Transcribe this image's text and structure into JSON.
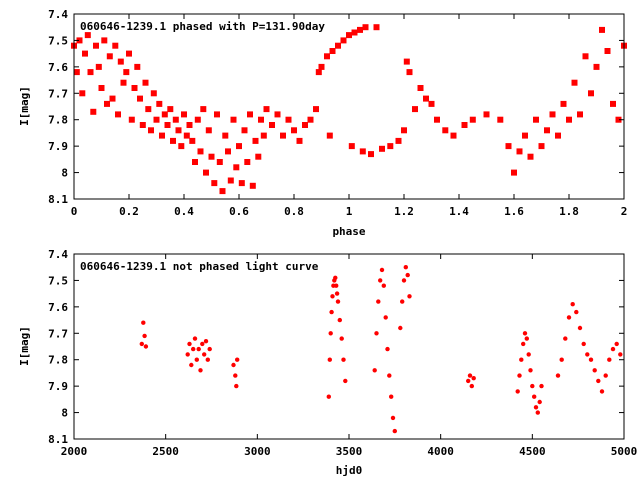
{
  "colors": {
    "points": "#ff0000",
    "axes": "#000000",
    "background": "#ffffff"
  },
  "chart_data": [
    {
      "type": "scatter",
      "title": "060646-1239.1 phased with P=131.90day",
      "xlabel": "phase",
      "ylabel": "I[mag]",
      "xlim": [
        0,
        2
      ],
      "ylim": [
        8.1,
        7.4
      ],
      "y_inverted": true,
      "grid": false,
      "legend": "none",
      "marker": "filled-square",
      "x_ticks": [
        "0",
        "0.2",
        "0.4",
        "0.6",
        "0.8",
        "1",
        "1.2",
        "1.4",
        "1.6",
        "1.8",
        "2"
      ],
      "y_ticks": [
        "7.4",
        "7.5",
        "7.6",
        "7.7",
        "7.8",
        "7.9",
        "8",
        "8.1"
      ],
      "points": [
        [
          0.0,
          7.52
        ],
        [
          0.01,
          7.62
        ],
        [
          0.02,
          7.5
        ],
        [
          0.03,
          7.7
        ],
        [
          0.04,
          7.55
        ],
        [
          0.05,
          7.48
        ],
        [
          0.06,
          7.62
        ],
        [
          0.07,
          7.77
        ],
        [
          0.08,
          7.52
        ],
        [
          0.09,
          7.6
        ],
        [
          0.1,
          7.68
        ],
        [
          0.11,
          7.5
        ],
        [
          0.12,
          7.74
        ],
        [
          0.13,
          7.56
        ],
        [
          0.14,
          7.72
        ],
        [
          0.15,
          7.52
        ],
        [
          0.16,
          7.78
        ],
        [
          0.17,
          7.58
        ],
        [
          0.18,
          7.66
        ],
        [
          0.19,
          7.62
        ],
        [
          0.2,
          7.55
        ],
        [
          0.21,
          7.8
        ],
        [
          0.22,
          7.68
        ],
        [
          0.23,
          7.6
        ],
        [
          0.24,
          7.72
        ],
        [
          0.25,
          7.82
        ],
        [
          0.26,
          7.66
        ],
        [
          0.27,
          7.76
        ],
        [
          0.28,
          7.84
        ],
        [
          0.29,
          7.7
        ],
        [
          0.3,
          7.8
        ],
        [
          0.31,
          7.74
        ],
        [
          0.32,
          7.86
        ],
        [
          0.33,
          7.78
        ],
        [
          0.34,
          7.82
        ],
        [
          0.35,
          7.76
        ],
        [
          0.36,
          7.88
        ],
        [
          0.37,
          7.8
        ],
        [
          0.38,
          7.84
        ],
        [
          0.39,
          7.9
        ],
        [
          0.4,
          7.78
        ],
        [
          0.41,
          7.86
        ],
        [
          0.42,
          7.82
        ],
        [
          0.43,
          7.88
        ],
        [
          0.44,
          7.96
        ],
        [
          0.45,
          7.8
        ],
        [
          0.46,
          7.92
        ],
        [
          0.47,
          7.76
        ],
        [
          0.48,
          8.0
        ],
        [
          0.49,
          7.84
        ],
        [
          0.5,
          7.94
        ],
        [
          0.51,
          8.04
        ],
        [
          0.52,
          7.78
        ],
        [
          0.53,
          7.96
        ],
        [
          0.54,
          8.07
        ],
        [
          0.55,
          7.86
        ],
        [
          0.56,
          7.92
        ],
        [
          0.57,
          8.03
        ],
        [
          0.58,
          7.8
        ],
        [
          0.59,
          7.98
        ],
        [
          0.6,
          7.9
        ],
        [
          0.61,
          8.04
        ],
        [
          0.62,
          7.84
        ],
        [
          0.63,
          7.96
        ],
        [
          0.64,
          7.78
        ],
        [
          0.65,
          8.05
        ],
        [
          0.66,
          7.88
        ],
        [
          0.67,
          7.94
        ],
        [
          0.68,
          7.8
        ],
        [
          0.69,
          7.86
        ],
        [
          0.7,
          7.76
        ],
        [
          0.72,
          7.82
        ],
        [
          0.74,
          7.78
        ],
        [
          0.76,
          7.86
        ],
        [
          0.78,
          7.8
        ],
        [
          0.8,
          7.84
        ],
        [
          0.82,
          7.88
        ],
        [
          0.84,
          7.82
        ],
        [
          0.86,
          7.8
        ],
        [
          0.88,
          7.76
        ],
        [
          0.89,
          7.62
        ],
        [
          0.9,
          7.6
        ],
        [
          0.92,
          7.56
        ],
        [
          0.93,
          7.86
        ],
        [
          0.94,
          7.54
        ],
        [
          0.96,
          7.52
        ],
        [
          0.98,
          7.5
        ],
        [
          1.0,
          7.48
        ],
        [
          1.01,
          7.9
        ],
        [
          1.02,
          7.47
        ],
        [
          1.04,
          7.46
        ],
        [
          1.05,
          7.92
        ],
        [
          1.06,
          7.45
        ],
        [
          1.08,
          7.93
        ],
        [
          1.1,
          7.45
        ],
        [
          1.12,
          7.91
        ],
        [
          1.15,
          7.9
        ],
        [
          1.18,
          7.88
        ],
        [
          1.2,
          7.84
        ],
        [
          1.21,
          7.58
        ],
        [
          1.22,
          7.62
        ],
        [
          1.24,
          7.76
        ],
        [
          1.26,
          7.68
        ],
        [
          1.28,
          7.72
        ],
        [
          1.3,
          7.74
        ],
        [
          1.32,
          7.8
        ],
        [
          1.35,
          7.84
        ],
        [
          1.38,
          7.86
        ],
        [
          1.42,
          7.82
        ],
        [
          1.45,
          7.8
        ],
        [
          1.5,
          7.78
        ],
        [
          1.55,
          7.8
        ],
        [
          1.58,
          7.9
        ],
        [
          1.6,
          8.0
        ],
        [
          1.62,
          7.92
        ],
        [
          1.64,
          7.86
        ],
        [
          1.66,
          7.94
        ],
        [
          1.68,
          7.8
        ],
        [
          1.7,
          7.9
        ],
        [
          1.72,
          7.84
        ],
        [
          1.74,
          7.78
        ],
        [
          1.76,
          7.86
        ],
        [
          1.78,
          7.74
        ],
        [
          1.8,
          7.8
        ],
        [
          1.82,
          7.66
        ],
        [
          1.84,
          7.78
        ],
        [
          1.86,
          7.56
        ],
        [
          1.88,
          7.7
        ],
        [
          1.9,
          7.6
        ],
        [
          1.92,
          7.46
        ],
        [
          1.94,
          7.54
        ],
        [
          1.96,
          7.74
        ],
        [
          1.98,
          7.8
        ],
        [
          2.0,
          7.52
        ]
      ]
    },
    {
      "type": "scatter",
      "title": "060646-1239.1 not phased light curve",
      "xlabel": "hjd0",
      "ylabel": "I[mag]",
      "xlim": [
        2000,
        5000
      ],
      "ylim": [
        8.1,
        7.4
      ],
      "y_inverted": true,
      "grid": false,
      "legend": "none",
      "marker": "filled-dot",
      "x_ticks": [
        "2000",
        "2500",
        "3000",
        "3500",
        "4000",
        "4500",
        "5000"
      ],
      "y_ticks": [
        "7.4",
        "7.5",
        "7.6",
        "7.7",
        "7.8",
        "7.9",
        "8",
        "8.1"
      ],
      "points": [
        [
          2370,
          7.74
        ],
        [
          2378,
          7.66
        ],
        [
          2385,
          7.71
        ],
        [
          2392,
          7.75
        ],
        [
          2620,
          7.78
        ],
        [
          2630,
          7.74
        ],
        [
          2640,
          7.82
        ],
        [
          2650,
          7.76
        ],
        [
          2660,
          7.72
        ],
        [
          2670,
          7.8
        ],
        [
          2680,
          7.76
        ],
        [
          2690,
          7.84
        ],
        [
          2700,
          7.74
        ],
        [
          2710,
          7.78
        ],
        [
          2720,
          7.73
        ],
        [
          2730,
          7.8
        ],
        [
          2740,
          7.76
        ],
        [
          2870,
          7.82
        ],
        [
          2880,
          7.86
        ],
        [
          2885,
          7.9
        ],
        [
          2890,
          7.8
        ],
        [
          3390,
          7.94
        ],
        [
          3395,
          7.8
        ],
        [
          3400,
          7.7
        ],
        [
          3405,
          7.62
        ],
        [
          3410,
          7.56
        ],
        [
          3415,
          7.52
        ],
        [
          3420,
          7.5
        ],
        [
          3425,
          7.49
        ],
        [
          3430,
          7.52
        ],
        [
          3435,
          7.55
        ],
        [
          3440,
          7.58
        ],
        [
          3450,
          7.65
        ],
        [
          3460,
          7.72
        ],
        [
          3470,
          7.8
        ],
        [
          3480,
          7.88
        ],
        [
          3640,
          7.84
        ],
        [
          3650,
          7.7
        ],
        [
          3660,
          7.58
        ],
        [
          3670,
          7.5
        ],
        [
          3680,
          7.46
        ],
        [
          3690,
          7.52
        ],
        [
          3700,
          7.64
        ],
        [
          3710,
          7.76
        ],
        [
          3720,
          7.86
        ],
        [
          3730,
          7.94
        ],
        [
          3740,
          8.02
        ],
        [
          3750,
          8.07
        ],
        [
          3780,
          7.68
        ],
        [
          3790,
          7.58
        ],
        [
          3800,
          7.5
        ],
        [
          3810,
          7.45
        ],
        [
          3820,
          7.48
        ],
        [
          3830,
          7.56
        ],
        [
          4150,
          7.88
        ],
        [
          4160,
          7.86
        ],
        [
          4170,
          7.9
        ],
        [
          4180,
          7.87
        ],
        [
          4420,
          7.92
        ],
        [
          4430,
          7.86
        ],
        [
          4440,
          7.8
        ],
        [
          4450,
          7.74
        ],
        [
          4460,
          7.7
        ],
        [
          4470,
          7.72
        ],
        [
          4480,
          7.78
        ],
        [
          4490,
          7.84
        ],
        [
          4500,
          7.9
        ],
        [
          4510,
          7.94
        ],
        [
          4520,
          7.98
        ],
        [
          4530,
          8.0
        ],
        [
          4540,
          7.96
        ],
        [
          4550,
          7.9
        ],
        [
          4640,
          7.86
        ],
        [
          4660,
          7.8
        ],
        [
          4680,
          7.72
        ],
        [
          4700,
          7.64
        ],
        [
          4720,
          7.59
        ],
        [
          4740,
          7.62
        ],
        [
          4760,
          7.68
        ],
        [
          4780,
          7.74
        ],
        [
          4800,
          7.78
        ],
        [
          4820,
          7.8
        ],
        [
          4840,
          7.84
        ],
        [
          4860,
          7.88
        ],
        [
          4880,
          7.92
        ],
        [
          4900,
          7.86
        ],
        [
          4920,
          7.8
        ],
        [
          4940,
          7.76
        ],
        [
          4960,
          7.74
        ],
        [
          4980,
          7.78
        ]
      ]
    }
  ]
}
